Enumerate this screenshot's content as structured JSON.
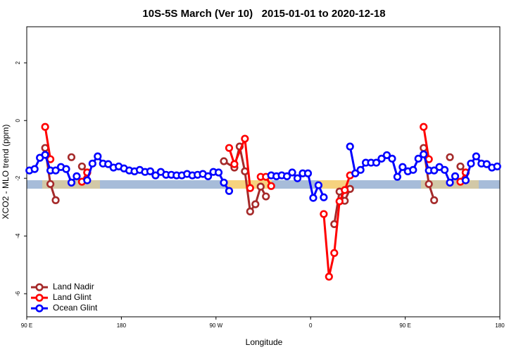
{
  "chart_data": {
    "type": "line",
    "title": "10S-5S March (Ver 10)   2015-01-01 to 2020-12-18",
    "x_label": "Longitude",
    "y_label": "XCO2 - MLO trend (ppm)",
    "xlim": [
      90,
      540
    ],
    "ylim": [
      -6.8,
      3.25
    ],
    "xticks": [
      {
        "value": 90,
        "label": "90 E"
      },
      180,
      {
        "value": 270,
        "label": "90 W"
      },
      {
        "value": 360,
        "label": "0"
      },
      {
        "value": 450,
        "label": "90 E"
      },
      {
        "value": 540,
        "label": "180"
      }
    ],
    "yticks": [
      -6,
      -4,
      -2,
      0,
      2
    ],
    "legend": "bottom-left",
    "series": [
      {
        "name": "Land Nadir",
        "color": "#a52a2a",
        "x": [
          107.5,
          112.5,
          117.5,
          null,
          132.5,
          null,
          142.5,
          147.5,
          null,
          277.5,
          287.5,
          292.5,
          297.5,
          302.5,
          307.5,
          312.5,
          317.5,
          null,
          382.5,
          387.5,
          392.5,
          397.5,
          null,
          467.5,
          472.5,
          477.5,
          null,
          492.5,
          null,
          502.5,
          507.5
        ],
        "values": [
          -0.95,
          -2.2,
          -2.76,
          null,
          -1.27,
          null,
          -1.59,
          -1.8,
          null,
          -1.41,
          -1.63,
          -0.9,
          -1.76,
          -3.15,
          -2.9,
          -2.29,
          -2.63,
          null,
          -3.59,
          -2.46,
          -2.78,
          -2.37,
          null,
          -0.95,
          -2.2,
          -2.76,
          null,
          -1.27,
          null,
          -1.59,
          -1.8
        ]
      },
      {
        "name": "Land Glint",
        "color": "#ff0000",
        "x": [
          107.5,
          112.5,
          null,
          142.5,
          147.5,
          null,
          282.5,
          287.5,
          297.5,
          302.5,
          null,
          312.5,
          317.5,
          322.5,
          null,
          372.5,
          377.5,
          382.5,
          387.5,
          392.5,
          397.5,
          null,
          467.5,
          472.5,
          null,
          502.5,
          507.5
        ],
        "values": [
          -0.22,
          -1.34,
          null,
          -2.12,
          -1.8,
          null,
          -0.95,
          -1.51,
          -0.63,
          -2.34,
          null,
          -1.95,
          -1.95,
          -2.27,
          null,
          -3.24,
          -5.41,
          -4.59,
          -2.8,
          -2.41,
          -1.9,
          null,
          -0.22,
          -1.34,
          null,
          -2.12,
          -1.8
        ]
      },
      {
        "name": "Ocean Glint",
        "color": "#0000ff",
        "x": [
          92.5,
          97.5,
          102.5,
          107.5,
          112.5,
          117.5,
          122.5,
          127.5,
          132.5,
          137.5,
          null,
          147.5,
          152.5,
          157.5,
          162.5,
          167.5,
          172.5,
          177.5,
          182.5,
          187.5,
          192.5,
          197.5,
          202.5,
          207.5,
          212.5,
          217.5,
          222.5,
          227.5,
          232.5,
          237.5,
          242.5,
          247.5,
          252.5,
          257.5,
          262.5,
          267.5,
          272.5,
          277.5,
          282.5,
          null,
          322.5,
          327.5,
          332.5,
          337.5,
          342.5,
          347.5,
          352.5,
          357.5,
          362.5,
          367.5,
          372.5,
          null,
          397.5,
          402.5,
          407.5,
          412.5,
          417.5,
          422.5,
          427.5,
          432.5,
          437.5,
          442.5,
          447.5,
          452.5,
          457.5,
          462.5,
          467.5,
          472.5,
          477.5,
          482.5,
          487.5,
          492.5,
          497.5,
          null,
          507.5,
          512.5,
          517.5,
          522.5,
          527.5,
          532.5,
          537.5
        ],
        "values": [
          -1.73,
          -1.68,
          -1.29,
          -1.19,
          -1.73,
          -1.73,
          -1.61,
          -1.68,
          -2.15,
          -1.93,
          null,
          -2.07,
          -1.49,
          -1.24,
          -1.49,
          -1.51,
          -1.63,
          -1.59,
          -1.66,
          -1.73,
          -1.76,
          -1.71,
          -1.78,
          -1.76,
          -1.9,
          -1.78,
          -1.88,
          -1.88,
          -1.9,
          -1.9,
          -1.85,
          -1.9,
          -1.88,
          -1.85,
          -1.93,
          -1.78,
          -1.8,
          -2.15,
          -2.44,
          null,
          -1.9,
          -1.93,
          -1.9,
          -1.93,
          -1.8,
          -2.0,
          -1.83,
          -1.83,
          -2.68,
          -2.24,
          -2.66,
          null,
          -0.9,
          -1.83,
          -1.71,
          -1.46,
          -1.46,
          -1.46,
          -1.32,
          -1.2,
          -1.32,
          -1.95,
          -1.61,
          -1.76,
          -1.71,
          -1.32,
          -1.17,
          -1.73,
          -1.73,
          -1.61,
          -1.71,
          -2.15,
          -1.93,
          null,
          -2.07,
          -1.49,
          -1.24,
          -1.49,
          -1.51,
          -1.63,
          -1.59
        ]
      }
    ]
  }
}
